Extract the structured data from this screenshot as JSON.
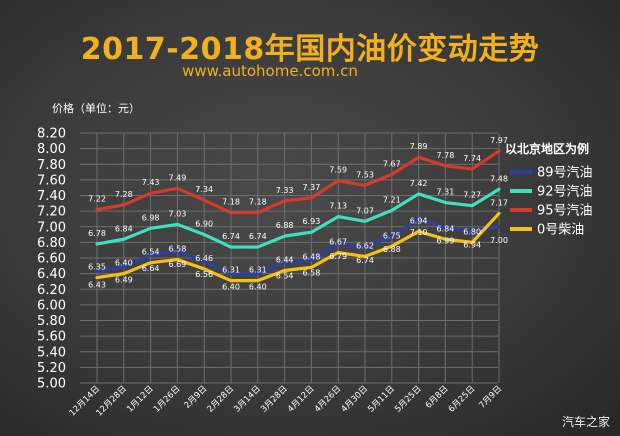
{
  "chart_data": {
    "type": "line",
    "title": "2017-2018年国内油价变动走势",
    "subtitle": "www.autohome.com.cn",
    "ylabel": "价格（单位：元）",
    "ylim": [
      5.0,
      8.2
    ],
    "yticks": [
      "5.00",
      "5.20",
      "5.40",
      "5.60",
      "5.80",
      "6.00",
      "6.20",
      "6.40",
      "6.60",
      "6.80",
      "7.00",
      "7.20",
      "7.40",
      "7.60",
      "7.80",
      "8.00",
      "8.20"
    ],
    "categories": [
      "12月14日",
      "12月28日",
      "1月12日",
      "1月26日",
      "2月9日",
      "2月28日",
      "3月14日",
      "3月28日",
      "4月12日",
      "4月26日",
      "4月30日",
      "5月11日",
      "5月25日",
      "6月8日",
      "6月25日",
      "7月9日"
    ],
    "legend_title": "以北京地区为例",
    "series": [
      {
        "name": "89号汽油",
        "color": "#2f3f9c",
        "values": [
          6.43,
          6.49,
          6.64,
          6.69,
          6.56,
          6.4,
          6.4,
          6.54,
          6.58,
          6.79,
          6.74,
          6.88,
          7.1,
          6.99,
          6.94,
          7.0
        ],
        "labels": [
          "6.43",
          "6.49",
          "6.64",
          "6.69",
          "6.56",
          "6.40",
          "6.40",
          "6.54",
          "6.58",
          "6.79",
          "6.74",
          "6.88",
          "7.10",
          "6.99",
          "6.94",
          "7.00"
        ]
      },
      {
        "name": "92号汽油",
        "color": "#3fe0bd",
        "values": [
          6.78,
          6.84,
          6.98,
          7.03,
          6.9,
          6.74,
          6.74,
          6.88,
          6.93,
          7.13,
          7.07,
          7.21,
          7.42,
          7.31,
          7.27,
          7.48
        ],
        "labels": [
          "6.78",
          "6.84",
          "6.98",
          "7.03",
          "6.90",
          "6.74",
          "6.74",
          "6.88",
          "6.93",
          "7.13",
          "7.07",
          "7.21",
          "7.42",
          "7.31",
          "7.27",
          "7.48"
        ]
      },
      {
        "name": "95号汽油",
        "color": "#d63a2a",
        "values": [
          7.22,
          7.28,
          7.43,
          7.49,
          7.34,
          7.18,
          7.18,
          7.33,
          7.37,
          7.59,
          7.53,
          7.67,
          7.89,
          7.78,
          7.74,
          7.97
        ],
        "labels": [
          "7.22",
          "7.28",
          "7.43",
          "7.49",
          "7.34",
          "7.18",
          "7.18",
          "7.33",
          "7.37",
          "7.59",
          "7.53",
          "7.67",
          "7.89",
          "7.78",
          "7.74",
          "7.97"
        ]
      },
      {
        "name": "0号柴油",
        "color": "#f5c016",
        "values": [
          6.35,
          6.4,
          6.54,
          6.58,
          6.46,
          6.31,
          6.31,
          6.44,
          6.48,
          6.67,
          6.62,
          6.75,
          6.94,
          6.84,
          6.8,
          7.17
        ],
        "labels": [
          "6.35",
          "6.40",
          "6.54",
          "6.58",
          "6.46",
          "6.31",
          "6.31",
          "6.44",
          "6.48",
          "6.67",
          "6.62",
          "6.75",
          "6.94",
          "6.84",
          "6.80",
          "7.17"
        ]
      }
    ]
  },
  "watermark": "汽车之家"
}
